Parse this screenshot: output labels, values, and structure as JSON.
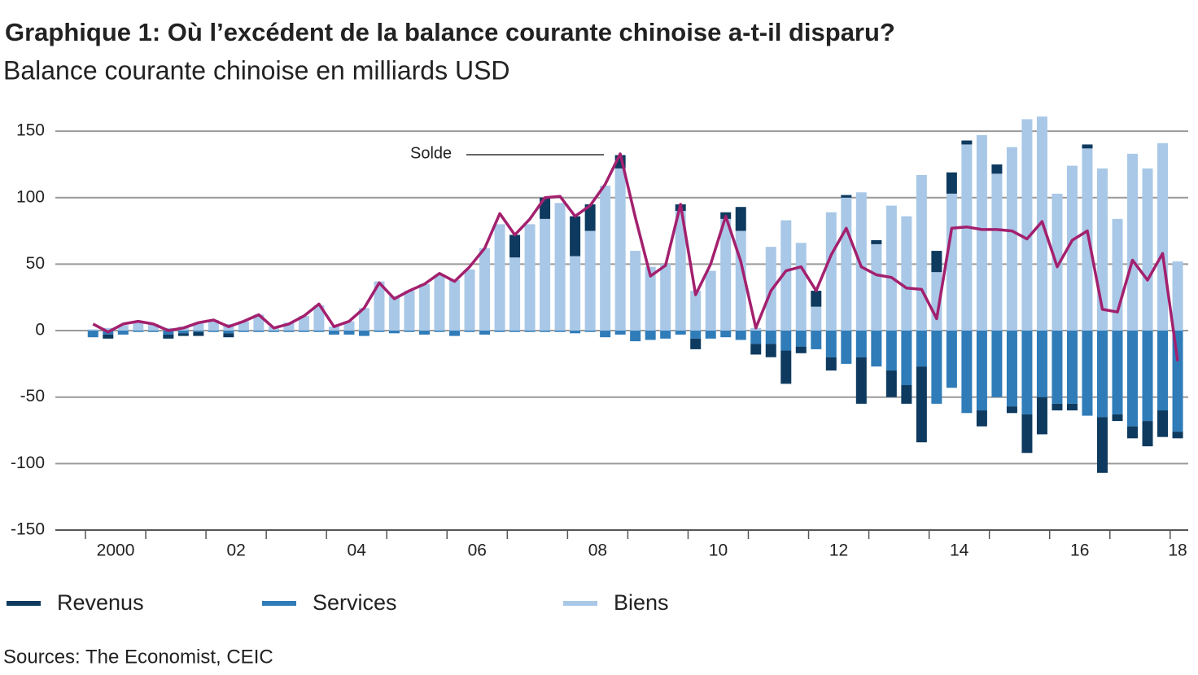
{
  "chart_data": {
    "type": "bar",
    "stacked": true,
    "title": "Graphique 1: Où l’excédent de la balance courante chinoise a-t-il disparu?",
    "subtitle": "Balance courante chinoise en milliards USD",
    "source": "Sources: The Economist, CEIC",
    "annotation": "Solde",
    "x": [
      2000.125,
      2000.375,
      2000.625,
      2000.875,
      2001.125,
      2001.375,
      2001.625,
      2001.875,
      2002.125,
      2002.375,
      2002.625,
      2002.875,
      2003.125,
      2003.375,
      2003.625,
      2003.875,
      2004.125,
      2004.375,
      2004.625,
      2004.875,
      2005.125,
      2005.375,
      2005.625,
      2005.875,
      2006.125,
      2006.375,
      2006.625,
      2006.875,
      2007.125,
      2007.375,
      2007.625,
      2007.875,
      2008.125,
      2008.375,
      2008.625,
      2008.875,
      2009.125,
      2009.375,
      2009.625,
      2009.875,
      2010.125,
      2010.375,
      2010.625,
      2010.875,
      2011.125,
      2011.375,
      2011.625,
      2011.875,
      2012.125,
      2012.375,
      2012.625,
      2012.875,
      2013.125,
      2013.375,
      2013.625,
      2013.875,
      2014.125,
      2014.375,
      2014.625,
      2014.875,
      2015.125,
      2015.375,
      2015.625,
      2015.875,
      2016.125,
      2016.375,
      2016.625,
      2016.875,
      2017.125,
      2017.375,
      2017.625,
      2017.875,
      2018.125
    ],
    "series": [
      {
        "name": "Revenus",
        "color": "#0e3a5f",
        "values": [
          0,
          -3,
          0,
          0,
          0,
          -3,
          -2,
          -3,
          0,
          -3,
          0,
          0,
          0,
          0,
          0,
          0,
          0,
          0,
          0,
          0,
          0,
          0,
          0,
          0,
          0,
          0,
          0,
          0,
          17,
          0,
          16,
          0,
          30,
          20,
          0,
          10,
          0,
          0,
          0,
          5,
          -8,
          0,
          5,
          18,
          -8,
          -10,
          -25,
          -5,
          12,
          -10,
          2,
          -35,
          3,
          -20,
          -14,
          -57,
          16,
          16,
          3,
          -12,
          7,
          -5,
          -29,
          -28,
          -5,
          -5,
          3,
          -42,
          -5,
          -9,
          -19,
          -20,
          -5
        ]
      },
      {
        "name": "Services",
        "color": "#2f7cb9",
        "values": [
          -5,
          -3,
          -3,
          -1,
          -1,
          -3,
          -2,
          -1,
          -1,
          -2,
          -1,
          -1,
          -1,
          -1,
          -1,
          -1,
          -3,
          -3,
          -4,
          -1,
          -2,
          -1,
          -3,
          -1,
          -4,
          -1,
          -3,
          -1,
          -1,
          -1,
          -1,
          -1,
          -2,
          -1,
          -5,
          -3,
          -8,
          -7,
          -6,
          -3,
          -6,
          -6,
          -5,
          -7,
          -10,
          -10,
          -15,
          -12,
          -14,
          -20,
          -25,
          -20,
          -27,
          -30,
          -41,
          -27,
          -55,
          -43,
          -62,
          -60,
          -50,
          -57,
          -63,
          -50,
          -55,
          -55,
          -64,
          -65,
          -63,
          -72,
          -68,
          -60,
          -76
        ]
      },
      {
        "name": "Biens",
        "color": "#a9c8e7",
        "values": [
          1,
          2,
          4,
          7,
          5,
          2,
          3,
          6,
          8,
          5,
          7,
          12,
          3,
          6,
          11,
          19,
          3,
          7,
          17,
          37,
          26,
          30,
          35,
          42,
          38,
          46,
          62,
          80,
          55,
          80,
          84,
          96,
          56,
          75,
          109,
          122,
          60,
          48,
          50,
          90,
          30,
          45,
          84,
          75,
          2,
          63,
          83,
          66,
          18,
          89,
          100,
          104,
          65,
          94,
          86,
          117,
          44,
          103,
          140,
          147,
          118,
          138,
          159,
          161,
          103,
          124,
          137,
          122,
          84,
          133,
          122,
          141,
          52
        ]
      }
    ],
    "line": {
      "name": "Solde",
      "type": "line",
      "color": "#a3206e",
      "values": [
        5,
        -1,
        5,
        7,
        5,
        0,
        2,
        6,
        8,
        3,
        7,
        12,
        2,
        5,
        11,
        20,
        3,
        7,
        17,
        36,
        24,
        30,
        35,
        43,
        37,
        48,
        62,
        88,
        72,
        84,
        100,
        101,
        86,
        94,
        110,
        133,
        85,
        41,
        49,
        95,
        27,
        50,
        86,
        52,
        2,
        30,
        45,
        48,
        30,
        57,
        77,
        48,
        42,
        40,
        32,
        31,
        9,
        77,
        78,
        76,
        76,
        75,
        69,
        82,
        48,
        68,
        75,
        16,
        14,
        53,
        38,
        58,
        -23
      ]
    },
    "xlim": [
      1999.5,
      2018.3
    ],
    "xticks": [
      {
        "value": 2000.5,
        "label": "2000"
      },
      {
        "value": 2002.5,
        "label": "02"
      },
      {
        "value": 2004.5,
        "label": "04"
      },
      {
        "value": 2006.5,
        "label": "06"
      },
      {
        "value": 2008.5,
        "label": "08"
      },
      {
        "value": 2010.5,
        "label": "10"
      },
      {
        "value": 2012.5,
        "label": "12"
      },
      {
        "value": 2014.5,
        "label": "14"
      },
      {
        "value": 2016.5,
        "label": "16"
      },
      {
        "value": 2018.125,
        "label": "18"
      }
    ],
    "xminorticks": [
      2000,
      2001,
      2002,
      2003,
      2004,
      2005,
      2006,
      2007,
      2008,
      2009,
      2010,
      2011,
      2012,
      2013,
      2014,
      2015,
      2016,
      2017,
      2018
    ],
    "ylim": [
      -150,
      163
    ],
    "yticks": [
      -150,
      -100,
      -50,
      0,
      50,
      100,
      150
    ],
    "grid": true
  }
}
